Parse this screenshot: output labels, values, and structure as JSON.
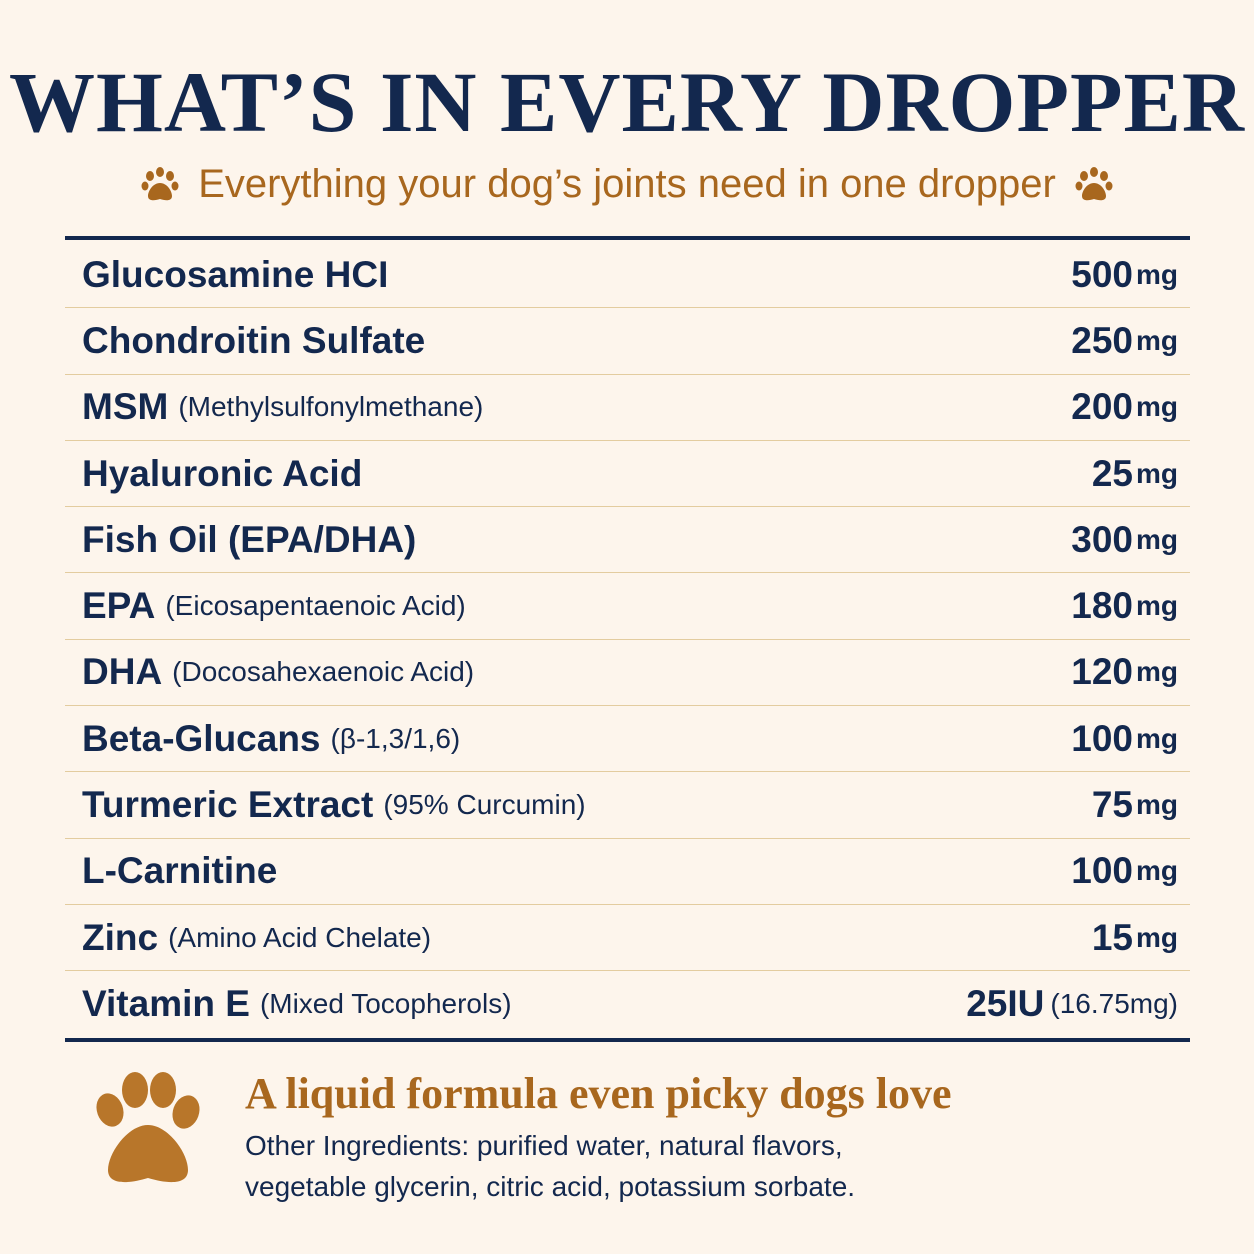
{
  "header": {
    "title": "WHAT’S IN EVERY DROPPER",
    "subtitle": "Everything your dog’s joints need in one dropper"
  },
  "table": {
    "rows": [
      {
        "name": "Glucosamine HCI",
        "amount": "500",
        "unit": "mg"
      },
      {
        "name": "Chondroitin Sulfate",
        "amount": "250",
        "unit": "mg"
      },
      {
        "name": "MSM",
        "detail": "(Methylsulfonylmethane)",
        "amount": "200",
        "unit": "mg"
      },
      {
        "name": "Hyaluronic Acid",
        "amount": "25",
        "unit": "mg"
      },
      {
        "name": "Fish Oil (EPA/DHA)",
        "amount": "300",
        "unit": "mg"
      },
      {
        "name": "EPA",
        "detail": "(Eicosapentaenoic Acid)",
        "amount": "180",
        "unit": "mg"
      },
      {
        "name": "DHA",
        "detail": "(Docosahexaenoic Acid)",
        "amount": "120",
        "unit": "mg"
      },
      {
        "name": "Beta-Glucans",
        "detail": "(β-1,3/1,6)",
        "amount": "100",
        "unit": "mg"
      },
      {
        "name": "Turmeric Extract",
        "detail": "(95% Curcumin)",
        "amount": "75",
        "unit": "mg"
      },
      {
        "name": "L-Carnitine",
        "amount": "100",
        "unit": "mg"
      },
      {
        "name": "Zinc",
        "detail": "(Amino Acid Chelate)",
        "amount": "15",
        "unit": "mg"
      },
      {
        "name": "Vitamin E",
        "detail": "(Mixed Tocopherols)",
        "amount": "25IU",
        "unit": "(16.75mg)"
      }
    ]
  },
  "footer": {
    "heading": "A liquid formula even picky dogs love",
    "lines": [
      "Other Ingredients: purified water, natural flavors,",
      "vegetable glycerin, citric acid, potassium sorbate."
    ]
  }
}
